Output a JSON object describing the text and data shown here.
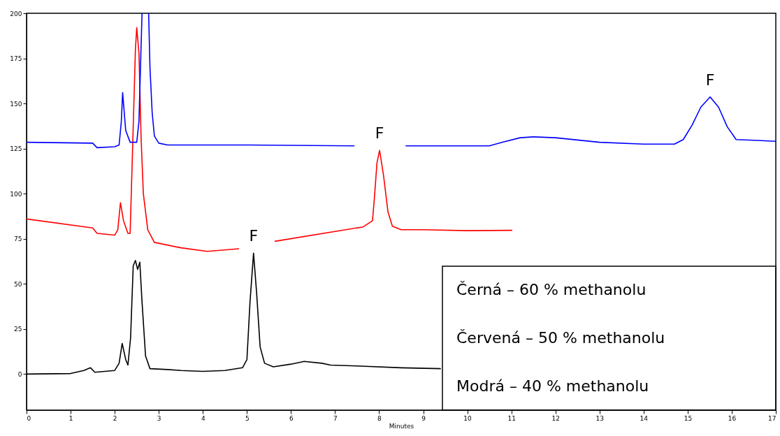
{
  "chart_data": {
    "type": "line",
    "xlabel": "Minutes",
    "xlim": [
      0,
      17
    ],
    "xticks": [
      0,
      1,
      2,
      3,
      4,
      5,
      6,
      7,
      8,
      9,
      10,
      11,
      12,
      13,
      14,
      15,
      16,
      17
    ],
    "ylim": [
      -20,
      200
    ],
    "yticks": [
      0,
      25,
      50,
      75,
      100,
      125,
      150,
      175,
      200
    ],
    "grid": false,
    "marker": "none",
    "line_style": "solid",
    "series": [
      {
        "color": "#000000",
        "x": [
          0,
          1,
          1.3,
          1.45,
          1.55,
          2.0,
          2.1,
          2.17,
          2.25,
          2.3,
          2.36,
          2.42,
          2.47,
          2.52,
          2.57,
          2.62,
          2.7,
          2.8,
          3.2,
          3.5,
          4.0,
          4.5,
          4.9,
          5.0,
          5.07,
          5.15,
          5.22,
          5.3,
          5.4,
          5.6,
          6.0,
          6.3,
          6.7,
          6.9,
          7.5,
          8.5,
          9.4
        ],
        "values": [
          0,
          0.3,
          2,
          3.5,
          1,
          2,
          6,
          17,
          8,
          5,
          20,
          60,
          63,
          58,
          62,
          40,
          10,
          3,
          2.5,
          2,
          1.5,
          2,
          3.5,
          8,
          40,
          67,
          45,
          15,
          6,
          4,
          5.5,
          7,
          6,
          5,
          4.5,
          3.5,
          3
        ]
      },
      {
        "color": "#ff0000",
        "x": [
          0,
          1.5,
          1.6,
          2.0,
          2.07,
          2.13,
          2.2,
          2.3,
          2.35,
          2.4,
          2.47,
          2.5,
          2.55,
          2.6,
          2.65,
          2.75,
          2.9,
          3.5,
          4.1,
          4.82,
          5.2,
          5.63,
          7.64,
          7.85,
          7.9,
          7.95,
          8.01,
          8.1,
          8.2,
          8.3,
          8.5,
          9.0,
          10.0,
          11.02
        ],
        "values": [
          86,
          81,
          78,
          77,
          80,
          95,
          85,
          78,
          78,
          120,
          180,
          192,
          178,
          130,
          100,
          80,
          73,
          70,
          68,
          69.5,
          null,
          73.6,
          81.6,
          85,
          100,
          117,
          124,
          110,
          90,
          82,
          80,
          80,
          79.5,
          79.7
        ]
      },
      {
        "color": "#0000ff",
        "x": [
          0,
          1.5,
          1.6,
          2.0,
          2.1,
          2.15,
          2.18,
          2.25,
          2.35,
          2.5,
          2.55,
          2.62,
          2.68,
          2.77,
          2.8,
          2.85,
          2.9,
          3.0,
          3.2,
          5.0,
          7.44,
          8.0,
          8.6,
          10.5,
          10.8,
          11.2,
          11.5,
          12,
          13,
          14,
          14.7,
          14.9,
          15.1,
          15.3,
          15.51,
          15.7,
          15.9,
          16.1,
          16.6,
          17
        ],
        "values": [
          128.5,
          128,
          125.5,
          126,
          127,
          140,
          156,
          135,
          128.5,
          128.5,
          140,
          200,
          null,
          200,
          170,
          145,
          132,
          128,
          127,
          127,
          126.5,
          null,
          126.5,
          126.5,
          128.5,
          131,
          131.5,
          131,
          128.5,
          127.5,
          127.5,
          130,
          138,
          148,
          153.6,
          148,
          137,
          130,
          129.5,
          129
        ]
      }
    ],
    "annotations": [
      {
        "text": "F",
        "x": 5.15,
        "y": 67
      },
      {
        "text": "F",
        "x": 8.01,
        "y": 124
      },
      {
        "text": "F",
        "x": 15.51,
        "y": 153.6
      },
      "Černá – 60 % methanolu",
      "Červená – 50 % methanolu",
      "Modrá – 40 % methanolu"
    ]
  }
}
